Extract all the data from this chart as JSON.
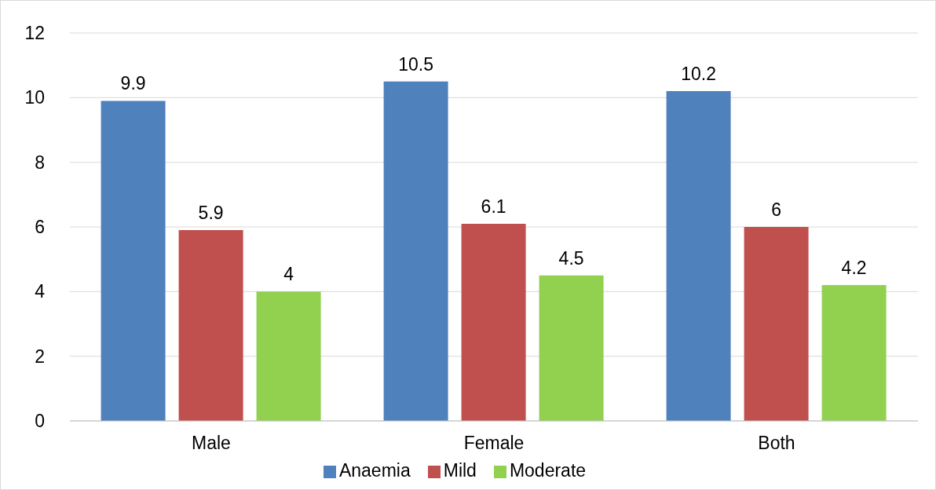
{
  "chart_data": {
    "type": "bar",
    "categories": [
      "Male",
      "Female",
      "Both"
    ],
    "series": [
      {
        "name": "Anaemia",
        "color": "#4f81bd",
        "values": [
          9.9,
          10.5,
          10.2
        ]
      },
      {
        "name": "Mild",
        "color": "#c0504d",
        "values": [
          5.9,
          6.1,
          6
        ]
      },
      {
        "name": "Moderate",
        "color": "#92d050",
        "values": [
          4,
          4.5,
          4.2
        ]
      }
    ],
    "ylim": [
      0,
      12
    ],
    "yticks": [
      0,
      2,
      4,
      6,
      8,
      10,
      12
    ],
    "grid": "y",
    "legend": "bottom",
    "data_labels": true
  }
}
